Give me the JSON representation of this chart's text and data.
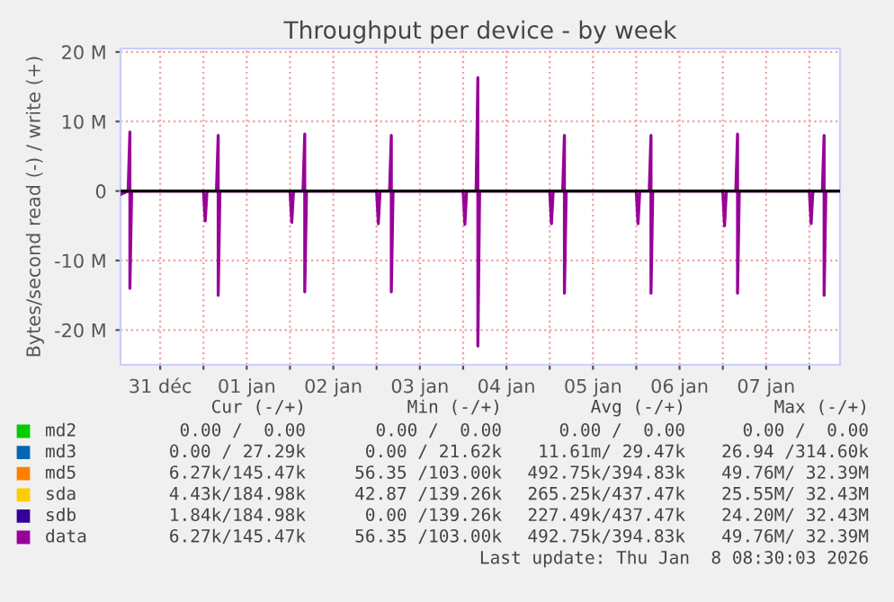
{
  "chart_data": {
    "type": "line",
    "title": "Throughput per device - by week",
    "ylabel": "Bytes/second read (-) / write (+)",
    "xlim": [
      "2025-12-31T01:00",
      "2026-01-08T08:30"
    ],
    "ylim": [
      -25,
      20.5
    ],
    "xticks": [
      {
        "value": "2025-12-31T12:00",
        "label": "31 déc"
      },
      {
        "value": "2026-01-01",
        "label": null
      },
      {
        "value": "2026-01-01T12:00",
        "label": "01 jan"
      },
      {
        "value": "2026-01-02",
        "label": null
      },
      {
        "value": "2026-01-02T12:00",
        "label": "02 jan"
      },
      {
        "value": "2026-01-03",
        "label": null
      },
      {
        "value": "2026-01-03T12:00",
        "label": "03 jan"
      },
      {
        "value": "2026-01-04",
        "label": null
      },
      {
        "value": "2026-01-04T12:00",
        "label": "04 jan"
      },
      {
        "value": "2026-01-05",
        "label": null
      },
      {
        "value": "2026-01-05T12:00",
        "label": "05 jan"
      },
      {
        "value": "2026-01-06",
        "label": null
      },
      {
        "value": "2026-01-06T12:00",
        "label": "06 jan"
      },
      {
        "value": "2026-01-07",
        "label": null
      },
      {
        "value": "2026-01-07T12:00",
        "label": "07 jan"
      },
      {
        "value": "2026-01-08",
        "label": null
      }
    ],
    "yticks": [
      {
        "value": -20,
        "label": "-20 M"
      },
      {
        "value": -10,
        "label": "-10 M"
      },
      0,
      {
        "value": 10,
        "label": "10 M"
      },
      {
        "value": 20,
        "label": "20 M"
      }
    ],
    "grid": true,
    "legend": "bottom left",
    "line_style": "solid",
    "marker": "none",
    "ref_lines": [
      {
        "axis": "y",
        "value": 0,
        "color": "#000000"
      }
    ],
    "series": [
      {
        "name": "md2",
        "color": "#00cc00"
      },
      {
        "name": "md3",
        "color": "#0066b3"
      },
      {
        "name": "md5",
        "color": "#ff8000"
      },
      {
        "name": "sda",
        "color": "#ffcc00"
      },
      {
        "name": "sdb",
        "color": "#330099"
      },
      {
        "name": "data",
        "color": "#990099",
        "x": [
          "2025-12-31T01:00",
          "2025-12-31T03:07",
          "2025-12-31T03:36",
          "2025-12-31T03:36",
          "2025-12-31T04:05",
          "2026-01-01T00:00",
          "2026-01-01T00:29",
          "2026-01-01T00:58",
          "2026-01-01T03:36",
          "2026-01-01T04:05",
          "2026-01-01T04:05",
          "2026-01-01T04:34",
          "2026-01-02T00:00",
          "2026-01-02T00:29",
          "2026-01-02T00:58",
          "2026-01-02T03:36",
          "2026-01-02T04:05",
          "2026-01-02T04:05",
          "2026-01-02T04:34",
          "2026-01-03T00:00",
          "2026-01-03T00:29",
          "2026-01-03T00:58",
          "2026-01-03T03:36",
          "2026-01-03T04:05",
          "2026-01-03T04:05",
          "2026-01-03T04:34",
          "2026-01-04T00:00",
          "2026-01-04T00:29",
          "2026-01-04T00:58",
          "2026-01-04T03:36",
          "2026-01-04T04:05",
          "2026-01-04T04:05",
          "2026-01-04T04:34",
          "2026-01-05T00:00",
          "2026-01-05T00:29",
          "2026-01-05T00:58",
          "2026-01-05T03:36",
          "2026-01-05T04:05",
          "2026-01-05T04:05",
          "2026-01-05T04:34",
          "2026-01-06T00:00",
          "2026-01-06T00:29",
          "2026-01-06T00:58",
          "2026-01-06T03:36",
          "2026-01-06T04:05",
          "2026-01-06T04:05",
          "2026-01-06T04:34",
          "2026-01-07T00:00",
          "2026-01-07T00:29",
          "2026-01-07T00:58",
          "2026-01-07T03:36",
          "2026-01-07T04:05",
          "2026-01-07T04:05",
          "2026-01-07T04:34",
          "2026-01-08T00:00",
          "2026-01-08T00:29",
          "2026-01-08T00:58",
          "2026-01-08T03:36",
          "2026-01-08T04:05",
          "2026-01-08T04:05",
          "2026-01-08T04:34",
          "2026-01-08T08:30"
        ],
        "values": [
          -0.5,
          0,
          8.5,
          -14,
          0,
          0,
          -4.3,
          0,
          0,
          8,
          -15,
          0,
          0,
          -4.5,
          0,
          0,
          8.2,
          -14.5,
          0,
          0,
          -4.7,
          0,
          0,
          8,
          -14.5,
          0,
          0,
          -4.8,
          0,
          0,
          16.3,
          -22.3,
          0,
          0,
          -4.7,
          0,
          0,
          8,
          -14.7,
          0,
          0,
          -4.7,
          0,
          0,
          8,
          -14.7,
          0,
          0,
          -5,
          0,
          0,
          8.2,
          -14.7,
          0,
          0,
          -4.7,
          0,
          0,
          8,
          -15,
          0,
          0
        ]
      }
    ],
    "annotations": [
      "Cur (-/+)",
      "Min (-/+)",
      "Avg (-/+)",
      "Max (-/+)",
      "0.00 /  0.00",
      "0.00 /  0.00",
      "0.00 /  0.00",
      "0.00 /  0.00",
      "0.00 / 27.29k",
      "0.00 / 21.62k",
      "11.61m/ 29.47k",
      "26.94 /314.60k",
      "6.27k/145.47k",
      "56.35 /103.00k",
      "492.75k/394.83k",
      "49.76M/ 32.39M",
      "4.43k/184.98k",
      "42.87 /139.26k",
      "265.25k/437.47k",
      "25.55M/ 32.43M",
      "1.84k/184.98k",
      "0.00 /139.26k",
      "227.49k/437.47k",
      "24.20M/ 32.43M",
      "6.27k/145.47k",
      "56.35 /103.00k",
      "492.75k/394.83k",
      "49.76M/ 32.39M",
      "Last update: Thu Jan  8 08:30:03 2026"
    ]
  }
}
